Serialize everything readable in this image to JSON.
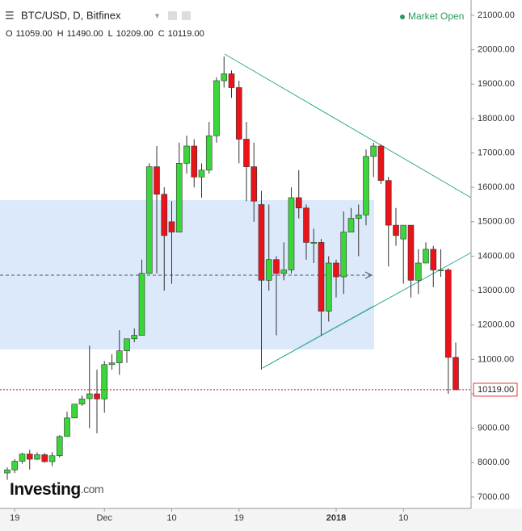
{
  "chart_data": {
    "type": "candlestick",
    "title": "BTC/USD, D, Bitfinex",
    "status": "Market Open",
    "ohlc": [
      {
        "label": "O",
        "value": "11059.00"
      },
      {
        "label": "H",
        "value": "11490.00"
      },
      {
        "label": "L",
        "value": "10209.00"
      },
      {
        "label": "C",
        "value": "10119.00"
      }
    ],
    "logo": {
      "name": "Investing",
      "suffix": ".com"
    },
    "categories": [
      null,
      "19",
      null,
      null,
      null,
      null,
      null,
      null,
      null,
      null,
      null,
      null,
      null,
      "Dec",
      null,
      null,
      null,
      null,
      null,
      null,
      null,
      null,
      "10",
      null,
      null,
      null,
      null,
      null,
      null,
      null,
      null,
      "19",
      null,
      null,
      null,
      null,
      null,
      null,
      null,
      null,
      null,
      null,
      null,
      null,
      "2018",
      null,
      null,
      null,
      null,
      null,
      null,
      null,
      null,
      "10",
      null,
      null,
      null,
      null,
      null,
      null,
      null
    ],
    "open": [
      7700,
      7790,
      8040,
      8250,
      8100,
      8230,
      8030,
      8200,
      8760,
      9300,
      9700,
      9860,
      10000,
      9850,
      10850,
      10900,
      11250,
      11600,
      11700,
      13500,
      16600,
      15800,
      15000,
      14700,
      16700,
      17200,
      16300,
      16500,
      17500,
      19100,
      19300,
      18900,
      17400,
      16600,
      15500,
      13300,
      13900,
      13500,
      13600,
      15700,
      15400,
      14400,
      14400,
      12400,
      13800,
      13400,
      14700,
      15100,
      15200,
      16900,
      17200,
      16200,
      14900,
      14500,
      14900,
      13300,
      13800,
      14200,
      13600,
      13600,
      11059
    ],
    "high": [
      7860,
      8100,
      8290,
      8370,
      8300,
      8280,
      8300,
      8800,
      9480,
      9700,
      9950,
      11400,
      10700,
      10950,
      11150,
      11850,
      11600,
      11900,
      13900,
      16700,
      17200,
      16000,
      15600,
      17300,
      17500,
      17400,
      16700,
      17900,
      19200,
      19800,
      19400,
      19100,
      17900,
      17300,
      15900,
      15500,
      14000,
      14400,
      16000,
      16500,
      15500,
      14800,
      14500,
      14000,
      13900,
      15300,
      15400,
      15500,
      17100,
      17300,
      17250,
      16300,
      15400,
      14900,
      14900,
      14200,
      14400,
      14300,
      14200,
      13650,
      11490
    ],
    "low": [
      7500,
      7700,
      7970,
      7800,
      8080,
      8000,
      7900,
      8150,
      8750,
      9300,
      9650,
      9000,
      8850,
      9450,
      10700,
      10550,
      10900,
      11500,
      11700,
      13500,
      13500,
      13000,
      13200,
      14700,
      16400,
      16000,
      15700,
      16400,
      17300,
      18900,
      18600,
      16700,
      15600,
      15000,
      10700,
      13000,
      11700,
      13300,
      13500,
      15100,
      13900,
      13800,
      11700,
      12100,
      12800,
      12900,
      14700,
      14000,
      14900,
      16300,
      16100,
      13700,
      14300,
      13200,
      12800,
      12900,
      13800,
      13100,
      13400,
      10000,
      10209
    ],
    "close": [
      7790,
      8040,
      8250,
      8100,
      8230,
      8030,
      8200,
      8760,
      9300,
      9700,
      9850,
      10000,
      9850,
      10850,
      10900,
      11250,
      11600,
      11700,
      13500,
      16600,
      15800,
      14600,
      14700,
      16700,
      17200,
      16300,
      16500,
      17500,
      19100,
      19300,
      18900,
      17400,
      16600,
      15600,
      13300,
      13900,
      13500,
      13600,
      15700,
      15400,
      14400,
      14400,
      12400,
      13800,
      13400,
      14700,
      15100,
      15200,
      16900,
      17200,
      16200,
      14900,
      14600,
      14900,
      13300,
      13800,
      14200,
      13600,
      13600,
      11059,
      10119
    ],
    "up_color": "#3ad63a",
    "down_color": "#e8141a",
    "last_price": {
      "value": 10119,
      "label": "10119.00"
    },
    "ylim": [
      6670,
      21445
    ],
    "yticks": [
      {
        "value": 7000,
        "label": "7000.00"
      },
      {
        "value": 8000,
        "label": "8000.00"
      },
      {
        "value": 9000,
        "label": "9000.00"
      },
      {
        "value": 10000,
        "label": "10000.00"
      },
      {
        "value": 11000,
        "label": "11000.00"
      },
      {
        "value": 12000,
        "label": "12000.00"
      },
      {
        "value": 13000,
        "label": "13000.00"
      },
      {
        "value": 14000,
        "label": "14000.00"
      },
      {
        "value": 15000,
        "label": "15000.00"
      },
      {
        "value": 16000,
        "label": "16000.00"
      },
      {
        "value": 17000,
        "label": "17000.00"
      },
      {
        "value": 18000,
        "label": "18000.00"
      },
      {
        "value": 19000,
        "label": "19000.00"
      },
      {
        "value": 20000,
        "label": "20000.00"
      },
      {
        "value": 21000,
        "label": "21000.00"
      }
    ]
  }
}
